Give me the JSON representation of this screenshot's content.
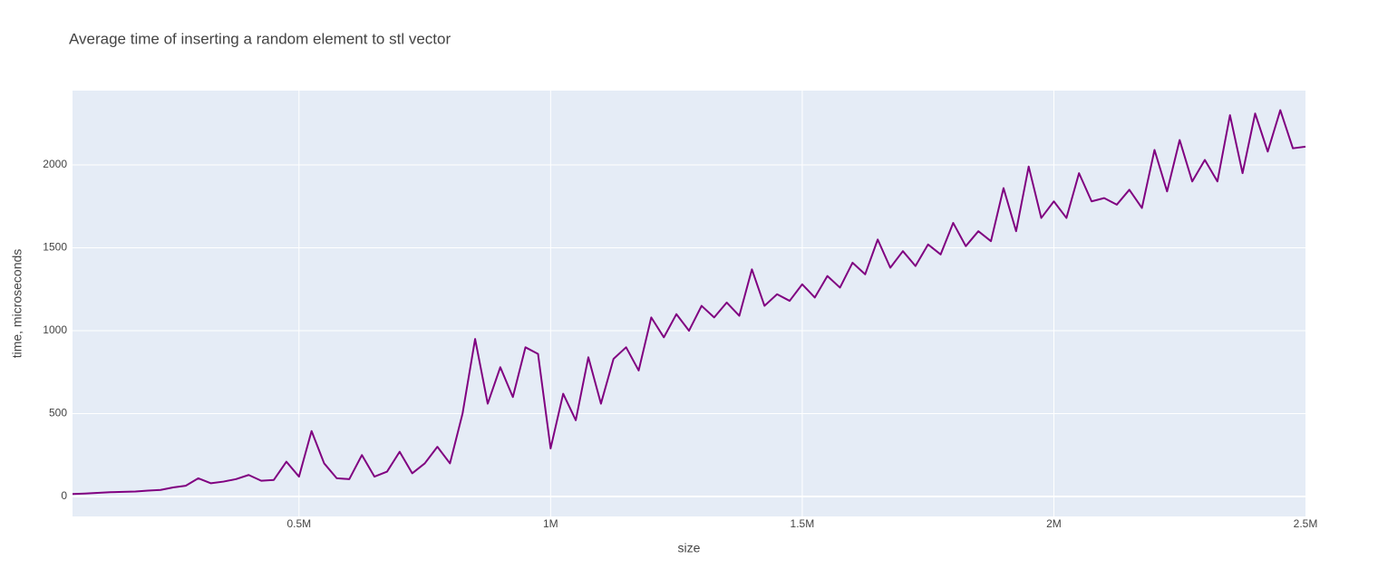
{
  "chart_data": {
    "type": "line",
    "title": "Average time of inserting a random element to stl vector",
    "xlabel": "size",
    "ylabel": "time, microseconds",
    "color": "#800080",
    "grid": true,
    "xlim": [
      50000,
      2500000
    ],
    "ylim": [
      -120,
      2448
    ],
    "xticks": [
      {
        "value": 500000,
        "label": "0.5M"
      },
      {
        "value": 1000000,
        "label": "1M"
      },
      {
        "value": 1500000,
        "label": "1.5M"
      },
      {
        "value": 2000000,
        "label": "2M"
      },
      {
        "value": 2500000,
        "label": "2.5M"
      }
    ],
    "yticks": [
      0,
      500,
      1000,
      1500,
      2000
    ],
    "x": [
      50000,
      75000,
      100000,
      125000,
      150000,
      175000,
      200000,
      225000,
      250000,
      275000,
      300000,
      325000,
      350000,
      375000,
      400000,
      425000,
      450000,
      475000,
      500000,
      525000,
      550000,
      575000,
      600000,
      625000,
      650000,
      675000,
      700000,
      725000,
      750000,
      775000,
      800000,
      825000,
      850000,
      875000,
      900000,
      925000,
      950000,
      975000,
      1000000,
      1025000,
      1050000,
      1075000,
      1100000,
      1125000,
      1150000,
      1175000,
      1200000,
      1225000,
      1250000,
      1275000,
      1300000,
      1325000,
      1350000,
      1375000,
      1400000,
      1425000,
      1450000,
      1475000,
      1500000,
      1525000,
      1550000,
      1575000,
      1600000,
      1625000,
      1650000,
      1675000,
      1700000,
      1725000,
      1750000,
      1775000,
      1800000,
      1825000,
      1850000,
      1875000,
      1900000,
      1925000,
      1950000,
      1975000,
      2000000,
      2025000,
      2050000,
      2075000,
      2100000,
      2125000,
      2150000,
      2175000,
      2200000,
      2225000,
      2250000,
      2275000,
      2300000,
      2325000,
      2350000,
      2375000,
      2400000,
      2425000,
      2450000,
      2475000,
      2500000
    ],
    "values": [
      15,
      18,
      22,
      26,
      28,
      30,
      36,
      40,
      55,
      65,
      110,
      80,
      90,
      105,
      130,
      95,
      100,
      210,
      120,
      395,
      200,
      110,
      105,
      250,
      120,
      150,
      270,
      140,
      200,
      300,
      200,
      500,
      950,
      560,
      780,
      600,
      900,
      860,
      290,
      620,
      460,
      840,
      560,
      830,
      900,
      760,
      1080,
      960,
      1100,
      1000,
      1150,
      1080,
      1170,
      1090,
      1370,
      1150,
      1220,
      1180,
      1280,
      1200,
      1330,
      1260,
      1410,
      1340,
      1550,
      1380,
      1480,
      1390,
      1520,
      1460,
      1650,
      1510,
      1600,
      1540,
      1860,
      1600,
      1990,
      1680,
      1780,
      1680,
      1950,
      1780,
      1800,
      1760,
      1850,
      1740,
      2090,
      1840,
      2150,
      1900,
      2030,
      1900,
      2300,
      1950,
      2310,
      2080,
      2330,
      2100,
      2110
    ]
  }
}
